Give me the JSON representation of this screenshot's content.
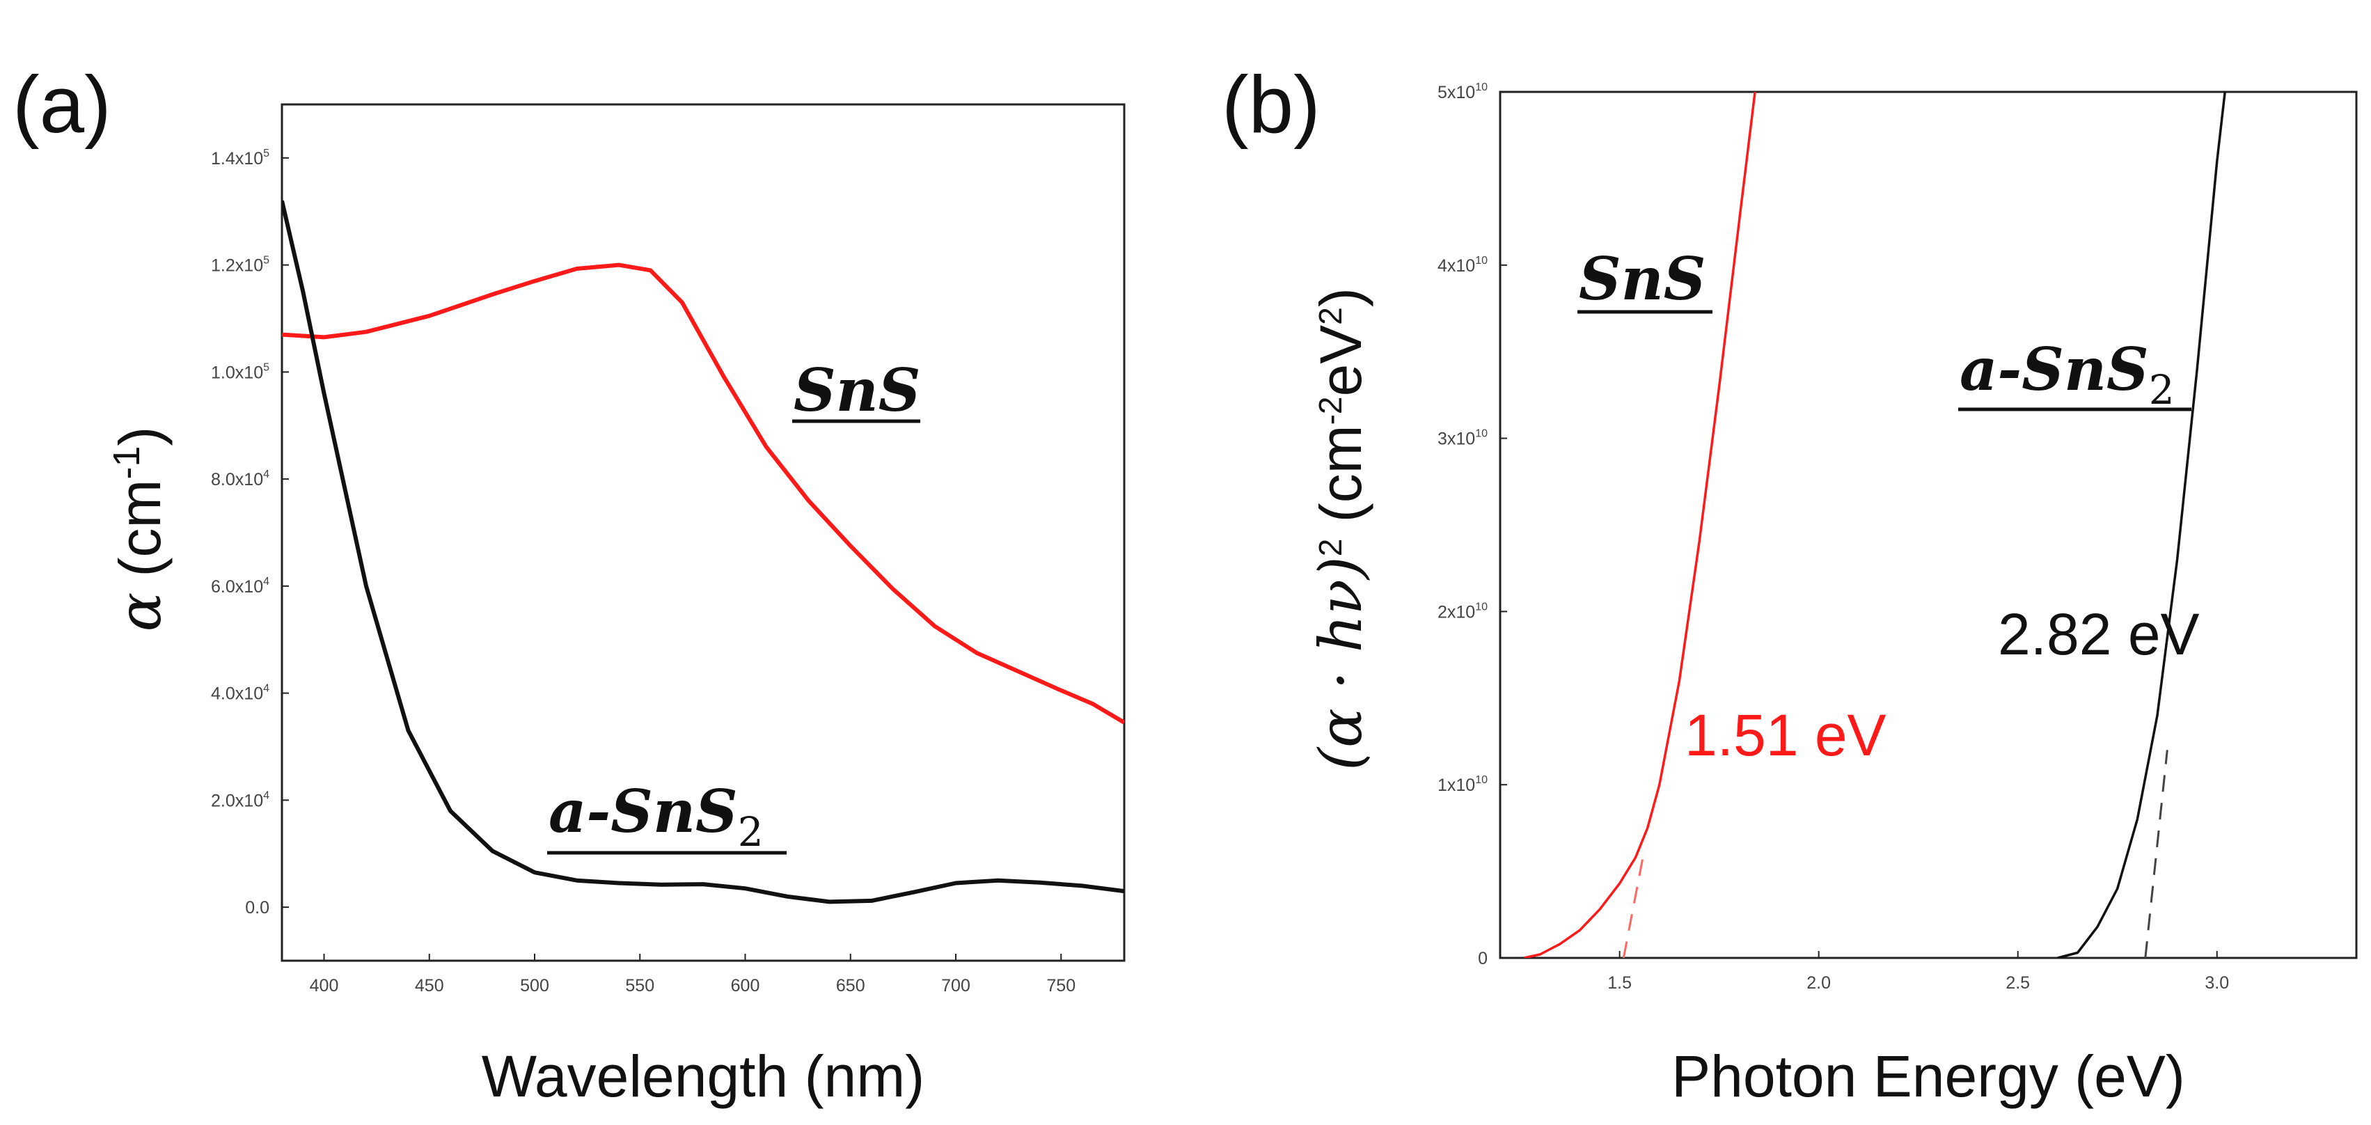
{
  "chart_data": [
    {
      "type": "line",
      "panel_label": "(a)",
      "xlabel": "Wavelength (nm)",
      "ylabel_symbol": "α",
      "ylabel_unit": "(cm",
      "ylabel_exp": "-1",
      "ylabel_close": ")",
      "xlim": [
        380,
        780
      ],
      "ylim": [
        -10000,
        150000
      ],
      "xticks": [
        400,
        450,
        500,
        550,
        600,
        650,
        700,
        750
      ],
      "xtick_labels": [
        "400",
        "450",
        "500",
        "550",
        "600",
        "650",
        "700",
        "750"
      ],
      "yticks": [
        0,
        20000,
        40000,
        60000,
        80000,
        100000,
        120000,
        140000
      ],
      "ytick_mantissa": [
        "0.0",
        "2.0x10",
        "4.0x10",
        "6.0x10",
        "8.0x10",
        "1.0x10",
        "1.2x10",
        "1.4x10"
      ],
      "ytick_exp": [
        "",
        "4",
        "4",
        "4",
        "4",
        "5",
        "5",
        "5"
      ],
      "series": [
        {
          "name": "SnS",
          "color": "#ff1a1a",
          "x": [
            380,
            400,
            420,
            450,
            480,
            500,
            520,
            540,
            555,
            570,
            590,
            610,
            630,
            650,
            670,
            690,
            710,
            730,
            750,
            765,
            780
          ],
          "y": [
            107000,
            106500,
            107500,
            110500,
            114500,
            117000,
            119300,
            120000,
            119000,
            113000,
            99000,
            86000,
            76000,
            67500,
            59500,
            52500,
            47500,
            44000,
            40500,
            38000,
            34500
          ]
        },
        {
          "name": "a-SnS2",
          "color": "#111111",
          "x": [
            380,
            390,
            400,
            420,
            440,
            460,
            480,
            500,
            520,
            540,
            560,
            580,
            600,
            620,
            640,
            660,
            680,
            700,
            720,
            740,
            760,
            780
          ],
          "y": [
            132000,
            115000,
            96000,
            60000,
            33000,
            18000,
            10500,
            6500,
            5000,
            4500,
            4200,
            4300,
            3500,
            2000,
            1000,
            1200,
            2800,
            4500,
            5000,
            4600,
            4000,
            3000
          ]
        }
      ],
      "annotations": [
        {
          "name": "SnS",
          "base": "SnS",
          "sub": "",
          "prefix": ""
        },
        {
          "name": "a-SnS2",
          "prefix": "a-",
          "base": "SnS",
          "sub": "2"
        }
      ]
    },
    {
      "type": "line",
      "panel_label": "(b)",
      "xlabel": "Photon Energy (eV)",
      "ylabel_main": "(α · hν)",
      "ylabel_pow": "2",
      "ylabel_unit_open": " (cm",
      "ylabel_unit_exp1": "-2",
      "ylabel_unit_mid": "eV",
      "ylabel_unit_exp2": "2",
      "ylabel_unit_close": ")",
      "xlim": [
        1.2,
        3.35
      ],
      "ylim": [
        0,
        50000000000
      ],
      "xticks": [
        1.5,
        2.0,
        2.5,
        3.0
      ],
      "xtick_labels": [
        "1.5",
        "2.0",
        "2.5",
        "3.0"
      ],
      "yticks": [
        0,
        10000000000,
        20000000000,
        30000000000,
        40000000000,
        50000000000
      ],
      "ytick_mantissa": [
        "0",
        "1x10",
        "2x10",
        "3x10",
        "4x10",
        "5x10"
      ],
      "ytick_exp": [
        "",
        "10",
        "10",
        "10",
        "10",
        "10"
      ],
      "series": [
        {
          "name": "SnS",
          "color": "#ff1a1a",
          "x": [
            1.26,
            1.3,
            1.35,
            1.4,
            1.45,
            1.5,
            1.54,
            1.57,
            1.6,
            1.65,
            1.7,
            1.75,
            1.8,
            1.84
          ],
          "y": [
            0,
            200000000,
            800000000,
            1600000000,
            2800000000,
            4300000000,
            5800000000,
            7500000000,
            10000000000,
            16000000000,
            24000000000,
            33000000000,
            42500000000,
            50000000000
          ]
        },
        {
          "name": "a-SnS2",
          "color": "#111111",
          "x": [
            2.6,
            2.65,
            2.7,
            2.75,
            2.8,
            2.85,
            2.9,
            2.95,
            3.0,
            3.02
          ],
          "y": [
            0,
            300000000,
            1800000000,
            4000000000,
            8000000000,
            14000000000,
            23000000000,
            34000000000,
            46000000000,
            50000000000
          ]
        }
      ],
      "fits": [
        {
          "name": "SnS-bandgap-fit",
          "color": "#ff6666",
          "x": [
            1.51,
            1.56
          ],
          "y": [
            0,
            6000000000
          ]
        },
        {
          "name": "a-SnS2-bandgap-fit",
          "color": "#444444",
          "x": [
            2.82,
            2.875
          ],
          "y": [
            0,
            12000000000
          ]
        }
      ],
      "annotations": [
        {
          "name": "SnS",
          "base": "SnS",
          "prefix": "",
          "sub": ""
        },
        {
          "name": "a-SnS2",
          "prefix": "a-",
          "base": "SnS",
          "sub": "2"
        },
        {
          "name": "bandgap-SnS",
          "text": "1.51 eV",
          "color": "#ff1a1a"
        },
        {
          "name": "bandgap-a-SnS2",
          "text": "2.82 eV",
          "color": "#111111"
        }
      ]
    }
  ]
}
